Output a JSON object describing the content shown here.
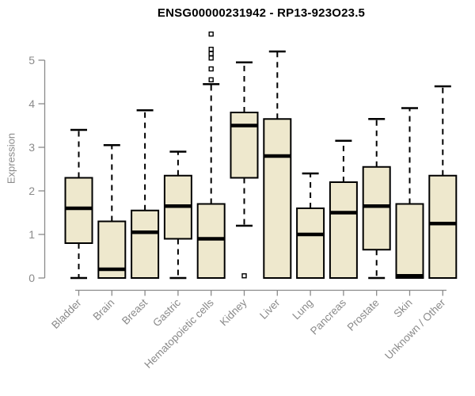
{
  "chart_data": {
    "type": "boxplot",
    "title": "ENSG00000231942 - RP13-923O23.5",
    "xlabel": "",
    "ylabel": "Expression",
    "ylim": [
      0,
      5
    ],
    "y_ticks": [
      0,
      1,
      2,
      3,
      4,
      5
    ],
    "grid": "off",
    "legend": "none",
    "categories": [
      "Bladder",
      "Brain",
      "Breast",
      "Gastric",
      "Hematopoietic cells",
      "Kidney",
      "Liver",
      "Lung",
      "Pancreas",
      "Prostate",
      "Skin",
      "Unknown / Other"
    ],
    "series": [
      {
        "name": "Bladder",
        "low": 0,
        "q1": 0.8,
        "median": 1.6,
        "q3": 2.3,
        "high": 3.4,
        "outliers": []
      },
      {
        "name": "Brain",
        "low": 0,
        "q1": 0,
        "median": 0.2,
        "q3": 1.3,
        "high": 3.05,
        "outliers": []
      },
      {
        "name": "Breast",
        "low": 0,
        "q1": 0,
        "median": 1.05,
        "q3": 1.55,
        "high": 3.85,
        "outliers": []
      },
      {
        "name": "Gastric",
        "low": 0,
        "q1": 0.9,
        "median": 1.65,
        "q3": 2.35,
        "high": 2.9,
        "outliers": []
      },
      {
        "name": "Hematopoietic cells",
        "low": 0,
        "q1": 0,
        "median": 0.9,
        "q3": 1.7,
        "high": 4.45,
        "outliers": [
          4.55,
          4.8,
          5.05,
          5.15,
          5.25,
          5.6
        ]
      },
      {
        "name": "Kidney",
        "low": 1.2,
        "q1": 2.3,
        "median": 3.5,
        "q3": 3.8,
        "high": 4.95,
        "outliers": [
          0.05
        ]
      },
      {
        "name": "Liver",
        "low": 0,
        "q1": 0,
        "median": 2.8,
        "q3": 3.65,
        "high": 5.2,
        "outliers": []
      },
      {
        "name": "Lung",
        "low": 0,
        "q1": 0,
        "median": 1.0,
        "q3": 1.6,
        "high": 2.4,
        "outliers": []
      },
      {
        "name": "Pancreas",
        "low": 0,
        "q1": 0,
        "median": 1.5,
        "q3": 2.2,
        "high": 3.15,
        "outliers": []
      },
      {
        "name": "Prostate",
        "low": 0,
        "q1": 0.65,
        "median": 1.65,
        "q3": 2.55,
        "high": 3.65,
        "outliers": []
      },
      {
        "name": "Skin",
        "low": 0,
        "q1": 0,
        "median": 0.05,
        "q3": 1.7,
        "high": 3.9,
        "outliers": []
      },
      {
        "name": "Unknown / Other",
        "low": 0,
        "q1": 0,
        "median": 1.25,
        "q3": 2.35,
        "high": 4.4,
        "outliers": []
      }
    ],
    "colors": {
      "box_fill": "#EEE8CD",
      "box_border": "#000000",
      "median": "#000000",
      "whisker": "#000000",
      "axis": "#8a8a8a",
      "tick_label": "#8a8a8a",
      "title": "#000000",
      "background": "#ffffff"
    }
  }
}
